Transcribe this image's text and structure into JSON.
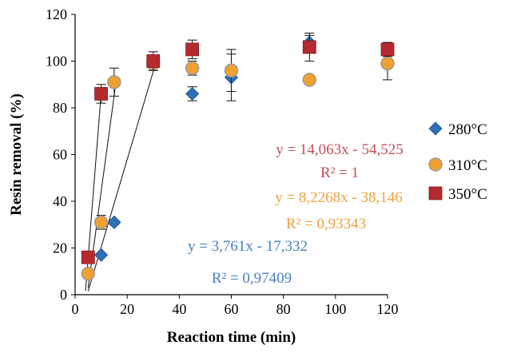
{
  "chart_data": {
    "type": "scatter",
    "xlabel": "Reaction time (min)",
    "ylabel": "Resin removal (%)",
    "xlim": [
      0,
      120
    ],
    "ylim": [
      0,
      120
    ],
    "x_ticks": [
      "0",
      "20",
      "40",
      "60",
      "80",
      "100",
      "120"
    ],
    "y_ticks": [
      "0",
      "20",
      "40",
      "60",
      "80",
      "100",
      "120"
    ],
    "grid": false,
    "legend_position": "right",
    "series": [
      {
        "name": "280°C",
        "marker": "diamond",
        "color": "#2f6fb5",
        "points": [
          {
            "x": 5,
            "y": 9,
            "err": 0
          },
          {
            "x": 10,
            "y": 17,
            "err": 0
          },
          {
            "x": 15,
            "y": 31,
            "err": 1
          },
          {
            "x": 30,
            "y": 99,
            "err": 2
          },
          {
            "x": 45,
            "y": 86,
            "err": 3
          },
          {
            "x": 60,
            "y": 93,
            "err": 10
          },
          {
            "x": 90,
            "y": 108,
            "err": 3
          },
          {
            "x": 120,
            "y": 104,
            "err": 3
          }
        ],
        "fit": {
          "slope": 3.761,
          "intercept": -17.332,
          "x_from": 5,
          "x_to": 31
        },
        "equation": "y = 3,761x - 17,332",
        "r2": "R² = 0,97409",
        "label_color": "#4a7fbf"
      },
      {
        "name": "310°C",
        "marker": "circle",
        "color": "#f0a030",
        "points": [
          {
            "x": 5,
            "y": 9,
            "err": 0
          },
          {
            "x": 10,
            "y": 31,
            "err": 3
          },
          {
            "x": 15,
            "y": 91,
            "err": 6
          },
          {
            "x": 30,
            "y": 99,
            "err": 3
          },
          {
            "x": 45,
            "y": 97,
            "err": 3
          },
          {
            "x": 60,
            "y": 96,
            "err": 9
          },
          {
            "x": 90,
            "y": 92,
            "err": 2
          },
          {
            "x": 120,
            "y": 99,
            "err": 7
          }
        ],
        "fit": {
          "slope": 8.2268,
          "intercept": -38.146,
          "x_from": 5,
          "x_to": 15.6
        },
        "equation": "y = 8,2268x - 38,146",
        "r2": "R² = 0,93343",
        "label_color": "#f0a040"
      },
      {
        "name": "350°C",
        "marker": "square",
        "color": "#b52a2e",
        "points": [
          {
            "x": 5,
            "y": 16,
            "err": 0
          },
          {
            "x": 10,
            "y": 86,
            "err": 4
          },
          {
            "x": 30,
            "y": 100,
            "err": 4
          },
          {
            "x": 45,
            "y": 105,
            "err": 4
          },
          {
            "x": 90,
            "y": 106,
            "err": 6
          },
          {
            "x": 120,
            "y": 105,
            "err": 3
          }
        ],
        "fit": {
          "slope": 14.063,
          "intercept": -54.525,
          "x_from": 4,
          "x_to": 10
        },
        "equation": "y = 14,063x - 54,525",
        "r2": "R² = 1",
        "label_color": "#c0505a"
      }
    ]
  }
}
